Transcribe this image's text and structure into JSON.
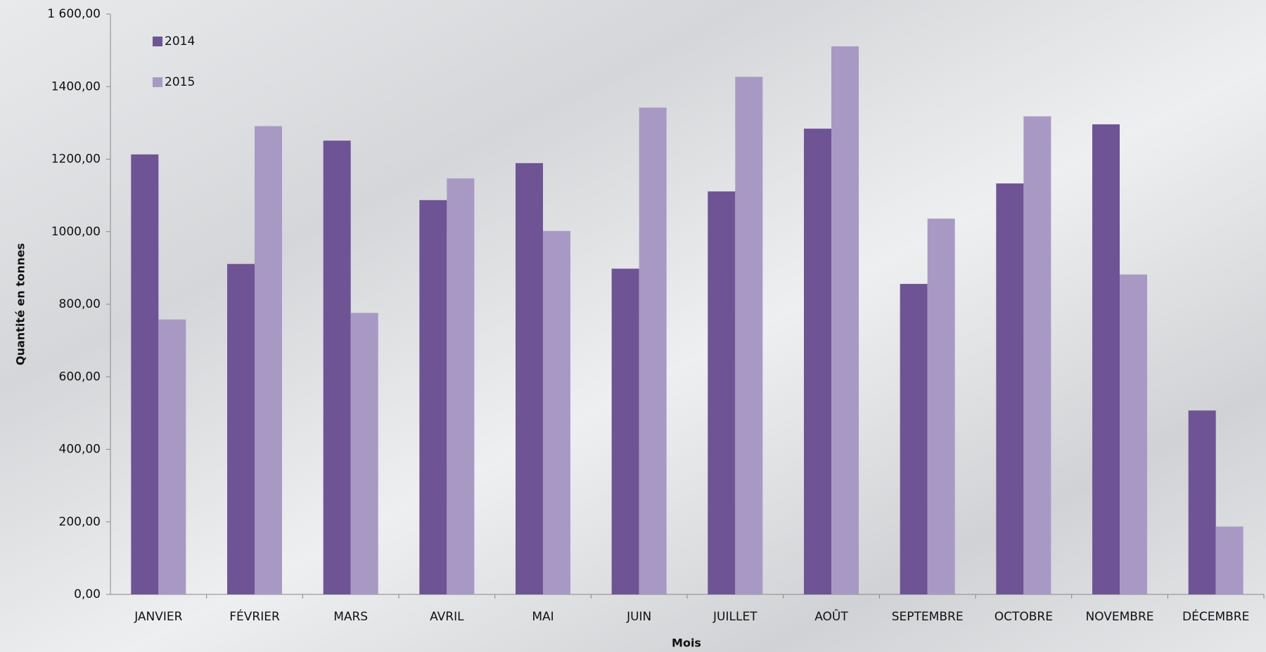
{
  "chart_data": {
    "type": "bar",
    "y_label": "Quantité en tonnes",
    "x_label": "Mois",
    "categories": [
      "JANVIER",
      "FÉVRIER",
      "MARS",
      "AVRIL",
      "MAI",
      "JUIN",
      "JUILLET",
      "AOÛT",
      "SEPTEMBRE",
      "OCTOBRE",
      "NOVEMBRE",
      "DÉCEMBRE"
    ],
    "series": [
      {
        "name": "2014",
        "color": "#6e5494",
        "values": [
          1213,
          911,
          1251,
          1087,
          1189,
          898,
          1111,
          1284,
          856,
          1133,
          1296,
          507
        ]
      },
      {
        "name": "2015",
        "color": "#a899c4",
        "values": [
          758,
          1291,
          776,
          1147,
          1002,
          1342,
          1427,
          1511,
          1036,
          1318,
          882,
          187
        ]
      }
    ],
    "ylim": [
      0,
      1600
    ],
    "yticks": [
      {
        "value": 0,
        "label": "0,00"
      },
      {
        "value": 200,
        "label": "200,00"
      },
      {
        "value": 400,
        "label": "400,00"
      },
      {
        "value": 600,
        "label": "600,00"
      },
      {
        "value": 800,
        "label": "800,00"
      },
      {
        "value": 1000,
        "label": "1000,00"
      },
      {
        "value": 1200,
        "label": "1200,00"
      },
      {
        "value": 1400,
        "label": "1400,00"
      },
      {
        "value": 1600,
        "label": "1 600,00"
      }
    ],
    "legend": "top-left"
  }
}
